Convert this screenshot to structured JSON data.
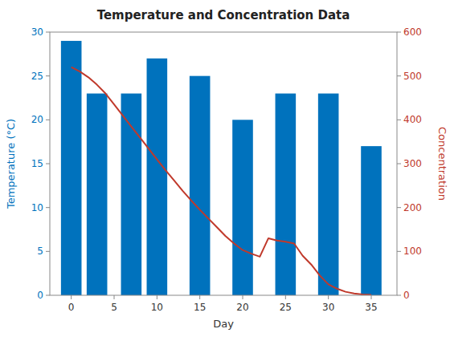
{
  "chart_data": {
    "type": "bar",
    "title": "Temperature and Concentration Data",
    "x_label": "Day",
    "y_label": "Temperature  (°C)",
    "y2_label": "Concentration",
    "xlim": [
      -2.5,
      38
    ],
    "xticks": [
      0,
      5,
      10,
      15,
      20,
      25,
      30,
      35
    ],
    "ylim": [
      0,
      30
    ],
    "yticks": [
      0,
      5,
      10,
      15,
      20,
      25,
      30
    ],
    "y2lim": [
      0,
      600
    ],
    "y2ticks": [
      0,
      100,
      200,
      300,
      400,
      500,
      600
    ],
    "grid": false,
    "series": [
      {
        "type": "bar",
        "color": "#0072BD",
        "x": [
          0,
          3,
          7,
          10,
          15,
          20,
          25,
          30,
          35
        ],
        "values": [
          29,
          23,
          23,
          27,
          25,
          20,
          23,
          23,
          17
        ]
      },
      {
        "type": "line",
        "axis": "y2",
        "color": "#C0392B",
        "x": [
          0,
          1,
          2,
          3,
          4,
          5,
          6,
          7,
          8,
          9,
          10,
          11,
          12,
          13,
          14,
          15,
          16,
          17,
          18,
          19,
          20,
          21,
          22,
          23,
          24,
          25,
          26,
          27,
          28,
          29,
          30,
          31,
          32,
          33,
          34,
          35
        ],
        "values": [
          520,
          510,
          497,
          480,
          460,
          435,
          410,
          385,
          360,
          335,
          310,
          285,
          262,
          238,
          216,
          195,
          175,
          155,
          135,
          118,
          103,
          95,
          88,
          130,
          125,
          122,
          118,
          90,
          70,
          45,
          25,
          15,
          8,
          4,
          2,
          1
        ]
      }
    ]
  }
}
